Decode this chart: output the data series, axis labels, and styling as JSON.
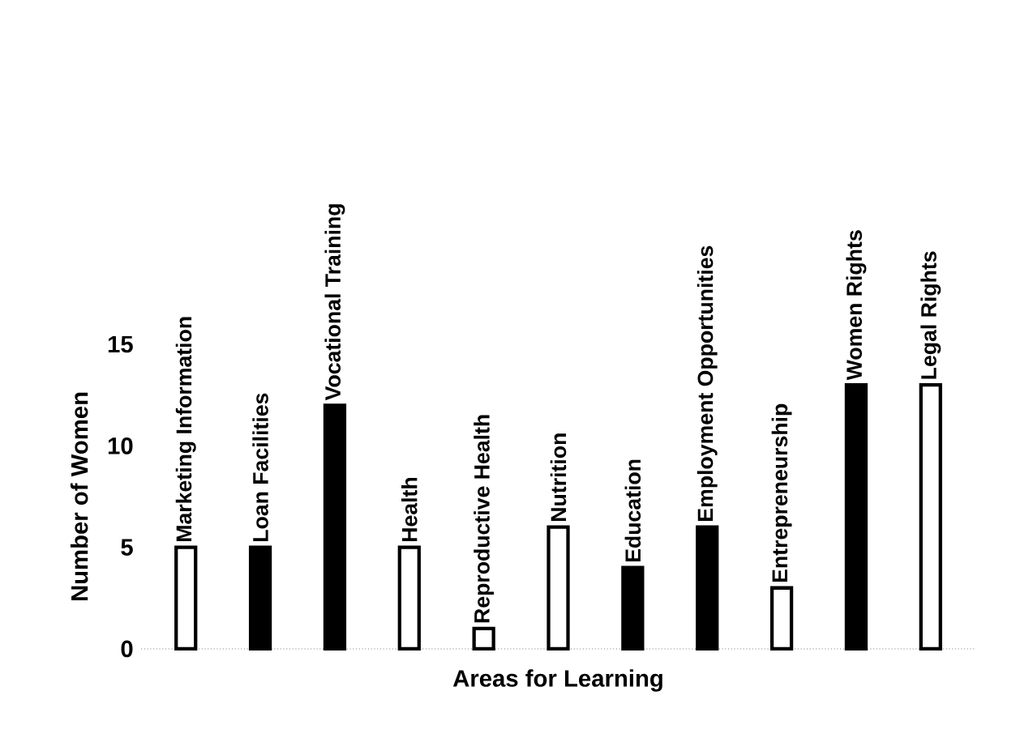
{
  "chart_data": {
    "type": "bar",
    "xlabel": "Areas for Learning",
    "ylabel": "Number of Women",
    "categories": [
      "Marketing Information",
      "Loan Facilities",
      "Vocational Training",
      "Health",
      "Reproductive Health",
      "Nutrition",
      "Education",
      "Employment Opportunities",
      "Entrepreneurship",
      "Women Rights",
      "Legal Rights"
    ],
    "values": [
      5,
      5,
      12,
      5,
      1,
      6,
      4,
      6,
      3,
      13,
      13
    ],
    "colors": [
      "#ffffff",
      "#000000",
      "#000000",
      "#ffffff",
      "#ffffff",
      "#ffffff",
      "#000000",
      "#000000",
      "#ffffff",
      "#000000",
      "#ffffff"
    ],
    "ylim": [
      0,
      15
    ],
    "yticks": [
      0,
      5,
      10,
      15
    ]
  }
}
